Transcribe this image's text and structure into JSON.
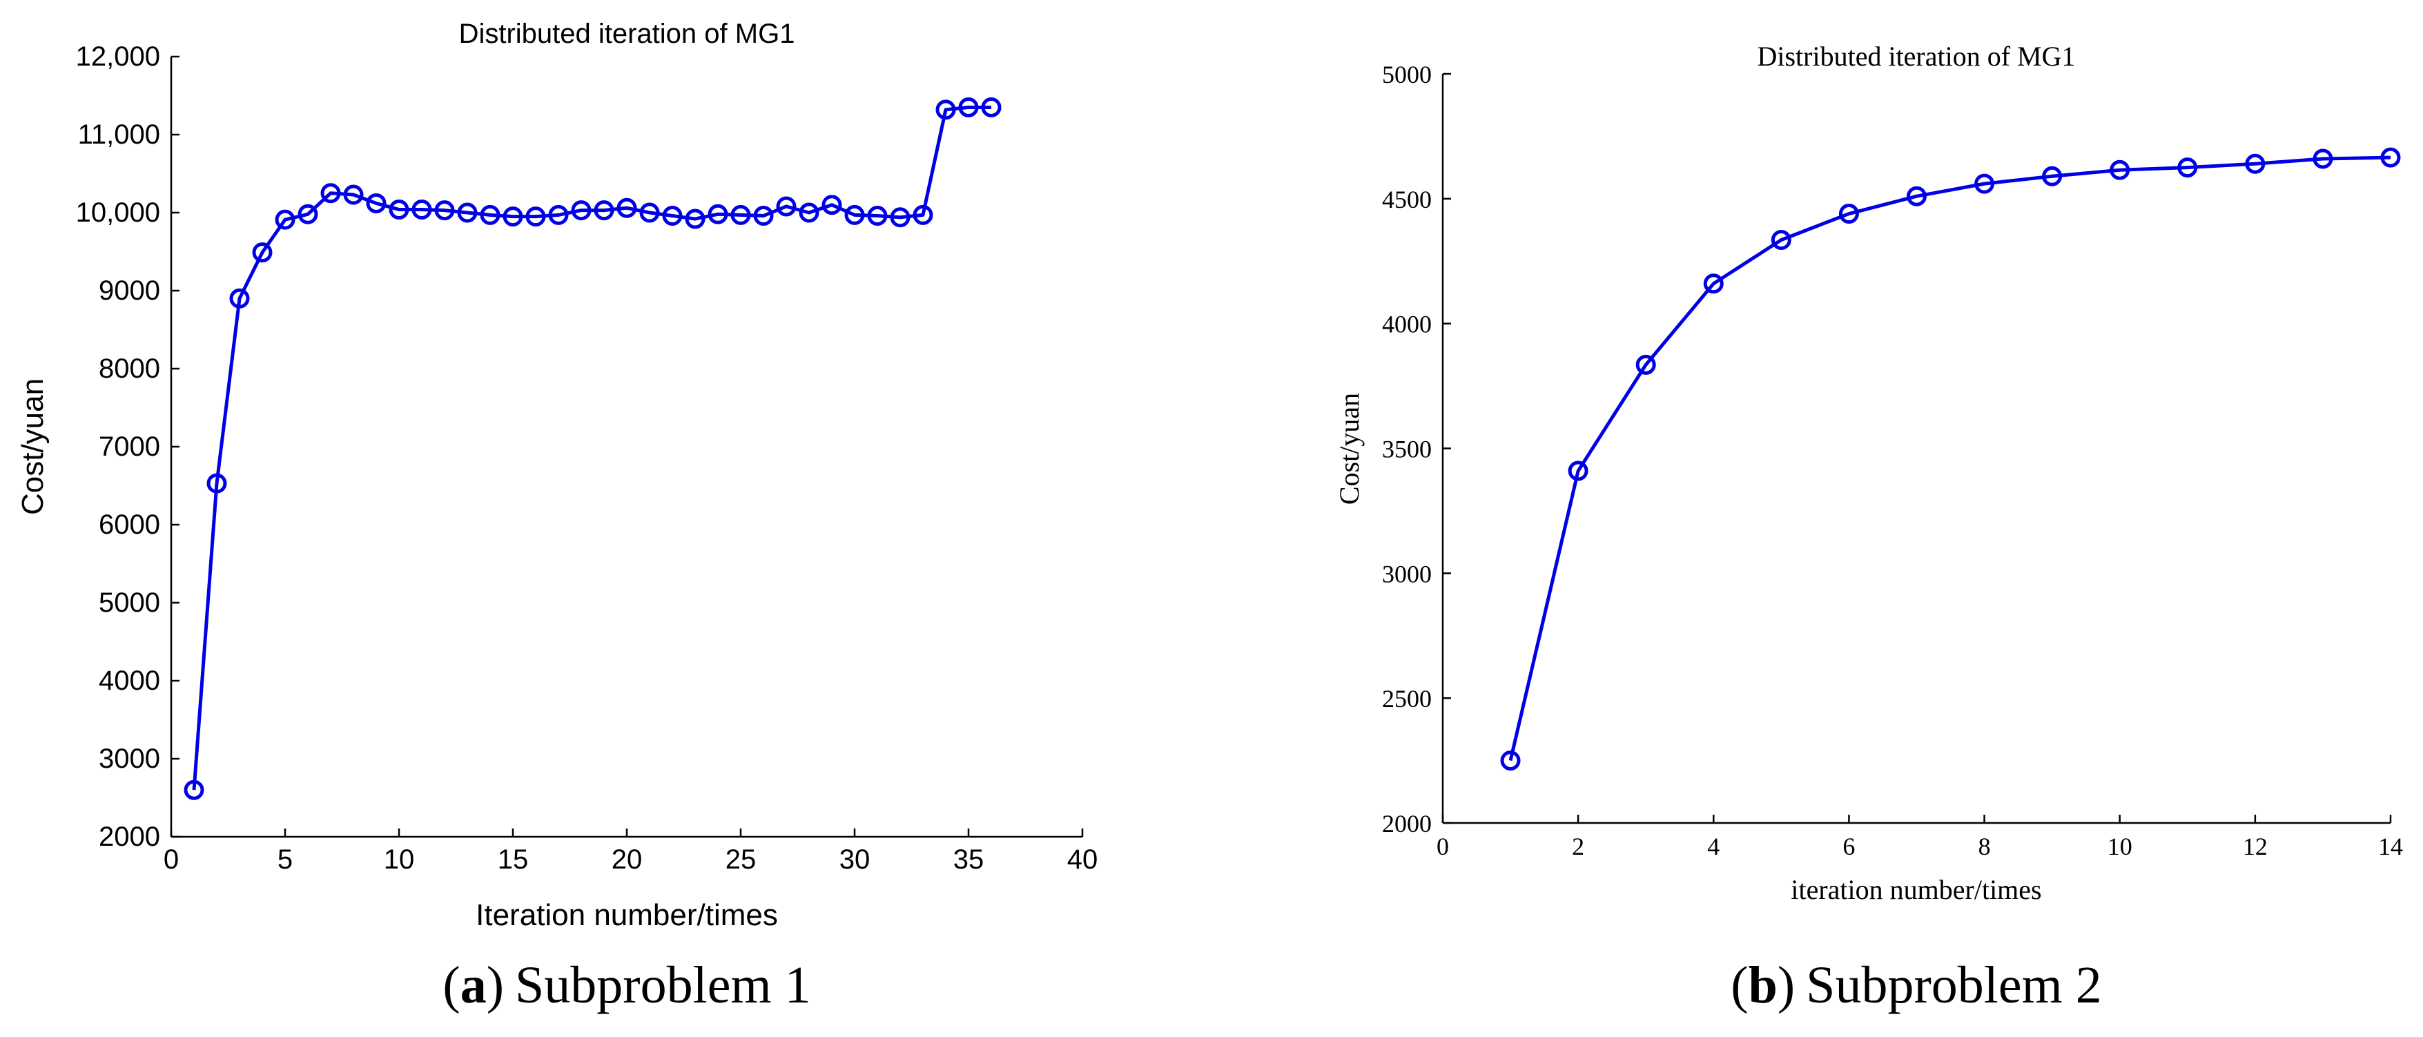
{
  "chart_data": [
    {
      "id": "a",
      "type": "line",
      "title": "Distributed iteration of MG1",
      "xlabel": "Iteration number/times",
      "ylabel": "Cost/yuan",
      "xlim": [
        0,
        40
      ],
      "ylim": [
        2000,
        12000
      ],
      "xticks": [
        0,
        5,
        10,
        15,
        20,
        25,
        30,
        35,
        40
      ],
      "xtick_labels": [
        "0",
        "5",
        "10",
        "15",
        "20",
        "25",
        "30",
        "35",
        "40"
      ],
      "yticks": [
        2000,
        3000,
        4000,
        5000,
        6000,
        7000,
        8000,
        9000,
        10000,
        11000,
        12000
      ],
      "ytick_labels": [
        "2000",
        "3000",
        "4000",
        "5000",
        "6000",
        "7000",
        "8000",
        "9000",
        "10,000",
        "11,000",
        "12,000"
      ],
      "grid": false,
      "series": [
        {
          "name": "MG1",
          "color": "#0000e6",
          "marker": "circle",
          "x": [
            1,
            2,
            3,
            4,
            5,
            6,
            7,
            8,
            9,
            10,
            11,
            12,
            13,
            14,
            15,
            16,
            17,
            18,
            19,
            20,
            21,
            22,
            23,
            24,
            25,
            26,
            27,
            28,
            29,
            30,
            31,
            32,
            33,
            34,
            35,
            36
          ],
          "y": [
            2600,
            6530,
            8900,
            9490,
            9910,
            9980,
            10250,
            10230,
            10120,
            10040,
            10040,
            10030,
            10000,
            9970,
            9950,
            9950,
            9970,
            10030,
            10030,
            10060,
            10000,
            9960,
            9920,
            9980,
            9970,
            9960,
            10080,
            10000,
            10100,
            9970,
            9960,
            9940,
            9970,
            11320,
            11350,
            11350
          ]
        }
      ],
      "caption_letter": "a",
      "caption_text": "Subproblem 1"
    },
    {
      "id": "b",
      "type": "line",
      "title": "Distributed iteration of MG1",
      "xlabel": "iteration number/times",
      "ylabel": "Cost/yuan",
      "xlim": [
        0,
        14
      ],
      "ylim": [
        2000,
        5000
      ],
      "xticks": [
        0,
        2,
        4,
        6,
        8,
        10,
        12,
        14
      ],
      "xtick_labels": [
        "0",
        "2",
        "4",
        "6",
        "8",
        "10",
        "12",
        "14"
      ],
      "yticks": [
        2000,
        2500,
        3000,
        3500,
        4000,
        4500,
        5000
      ],
      "ytick_labels": [
        "2000",
        "2500",
        "3000",
        "3500",
        "4000",
        "4500",
        "5000"
      ],
      "grid": false,
      "series": [
        {
          "name": "MG1",
          "color": "#0000e6",
          "marker": "circle",
          "x": [
            1,
            2,
            3,
            4,
            5,
            6,
            7,
            8,
            9,
            10,
            11,
            12,
            13,
            14
          ],
          "y": [
            2250,
            3410,
            3835,
            4160,
            4335,
            4440,
            4510,
            4560,
            4590,
            4615,
            4625,
            4640,
            4660,
            4665
          ]
        }
      ],
      "caption_letter": "b",
      "caption_text": "Subproblem 2"
    }
  ],
  "captions": [
    {
      "open": "(",
      "letter": "a",
      "close": ")",
      "text": "Subproblem 1"
    },
    {
      "open": "(",
      "letter": "b",
      "close": ")",
      "text": "Subproblem 2"
    }
  ]
}
